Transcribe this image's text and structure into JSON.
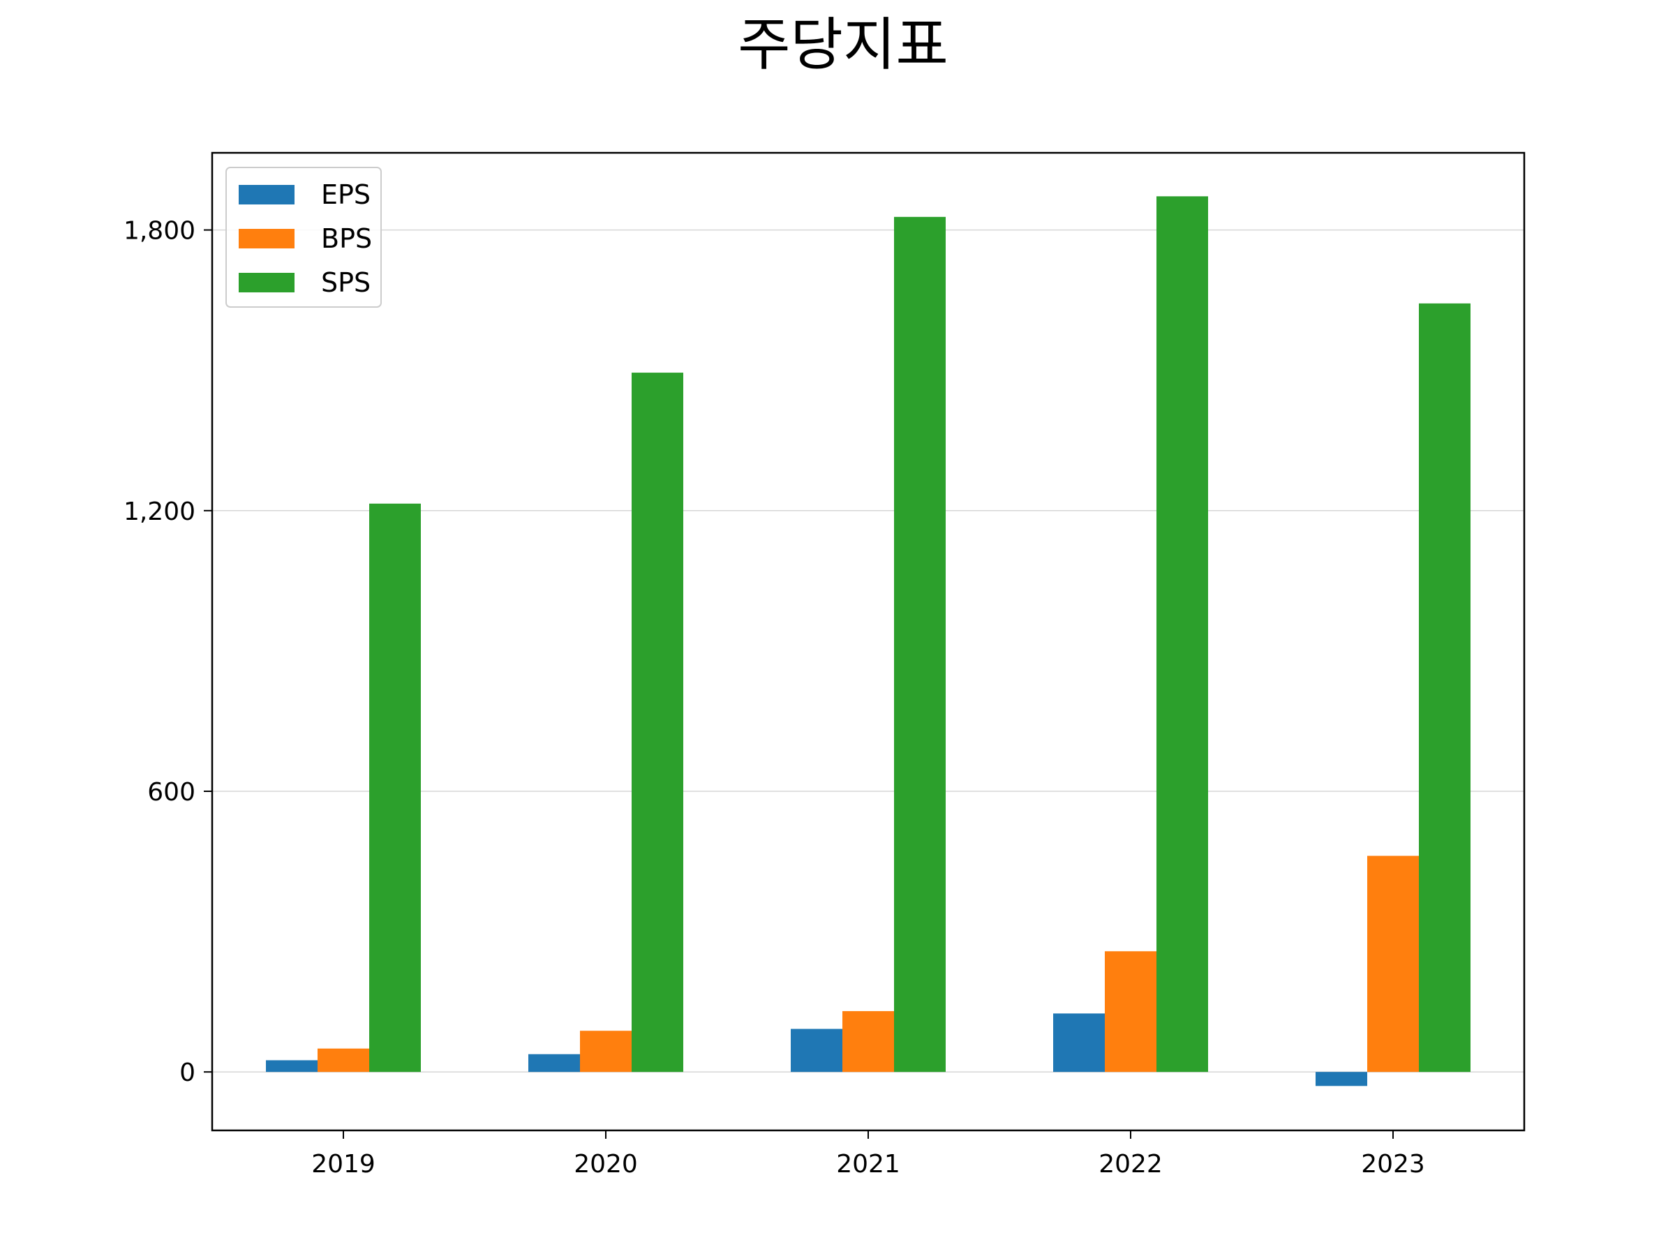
{
  "chart_data": {
    "type": "bar",
    "title": "주당지표",
    "xlabel": "",
    "ylabel": "",
    "categories": [
      "2019",
      "2020",
      "2021",
      "2022",
      "2023"
    ],
    "series": [
      {
        "name": "EPS",
        "color": "#1f77b4",
        "values": [
          25,
          38,
          92,
          125,
          -30
        ]
      },
      {
        "name": "BPS",
        "color": "#ff7f0e",
        "values": [
          50,
          88,
          130,
          258,
          462
        ]
      },
      {
        "name": "SPS",
        "color": "#2ca02c",
        "values": [
          1215,
          1495,
          1828,
          1872,
          1643
        ]
      }
    ],
    "ylim": [
      -125,
      1965
    ],
    "yticks": [
      0,
      600,
      1200,
      1800
    ],
    "ytick_labels": [
      "0",
      "600",
      "1,200",
      "1,800"
    ],
    "grid": "y",
    "legend_position": "top-left"
  }
}
